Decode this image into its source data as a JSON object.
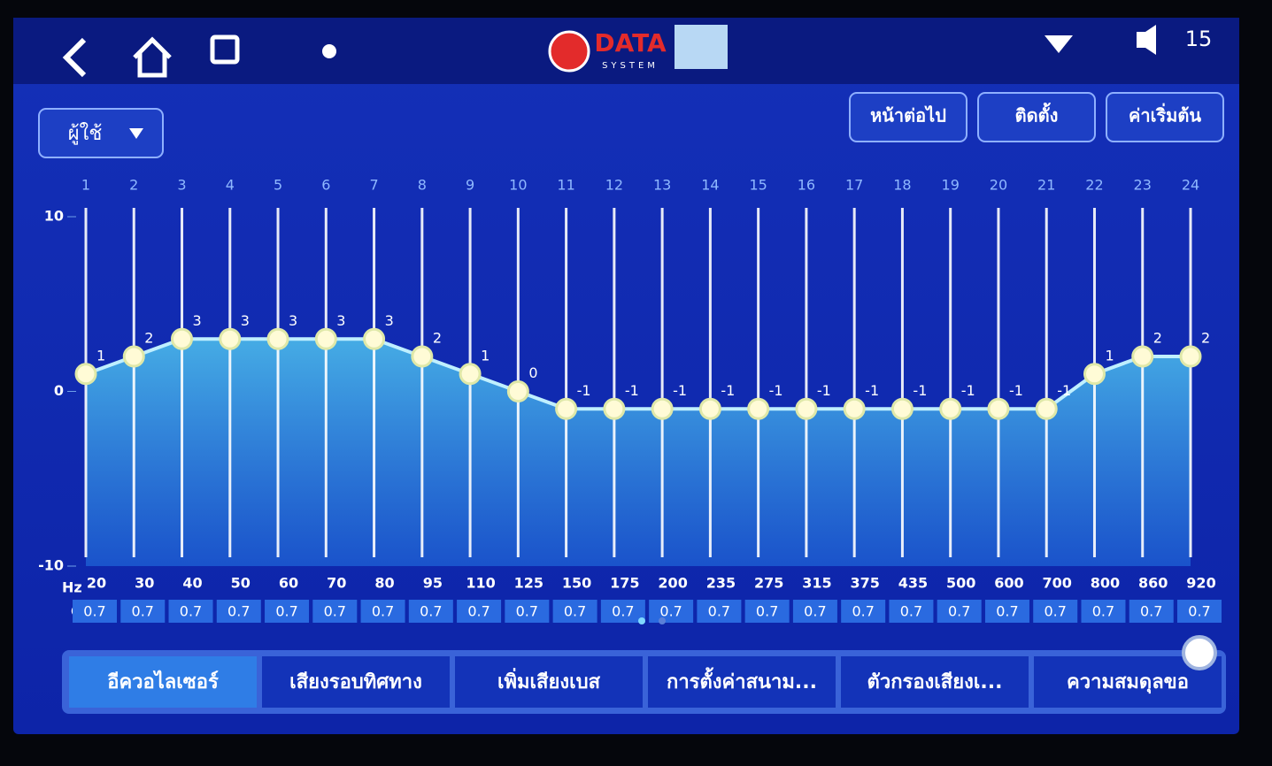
{
  "ui": {
    "logo": "DATA",
    "logo_sub": "SYSTEM",
    "clock": "15",
    "preset": "ผู้ใช้",
    "buttons": [
      "หน้าต่อไป",
      "ติดตั้ง",
      "ค่าเริ่มต้น"
    ],
    "tabs": [
      "อีควอไลเซอร์",
      "เสียงรอบทิศทาง",
      "เพิ่มเสียงเบส",
      "การตั้งค่าสนาม...",
      "ตัวกรองเสียงเ...",
      "ความสมดุลขอ"
    ],
    "selected_tab": 0
  },
  "chart_data": {
    "type": "line",
    "bands": [
      1,
      2,
      3,
      4,
      5,
      6,
      7,
      8,
      9,
      10,
      11,
      12,
      13,
      14,
      15,
      16,
      17,
      18,
      19,
      20,
      21,
      22,
      23,
      24
    ],
    "categories": [
      20,
      30,
      40,
      50,
      60,
      70,
      80,
      95,
      110,
      125,
      150,
      175,
      200,
      235,
      275,
      315,
      375,
      435,
      500,
      600,
      700,
      800,
      860,
      920
    ],
    "values": [
      1,
      2,
      3,
      3,
      3,
      3,
      3,
      2,
      1,
      0,
      -1,
      -1,
      -1,
      -1,
      -1,
      -1,
      -1,
      -1,
      -1,
      -1,
      -1,
      1,
      2,
      2
    ],
    "q": [
      0.7,
      0.7,
      0.7,
      0.7,
      0.7,
      0.7,
      0.7,
      0.7,
      0.7,
      0.7,
      0.7,
      0.7,
      0.7,
      0.7,
      0.7,
      0.7,
      0.7,
      0.7,
      0.7,
      0.7,
      0.7,
      0.7,
      0.7,
      0.7
    ],
    "x_label": "Hz",
    "q_label": "Q",
    "ylim": [
      -10,
      10
    ],
    "yticks": [
      -10,
      0,
      10
    ],
    "color": "#bfefff"
  }
}
